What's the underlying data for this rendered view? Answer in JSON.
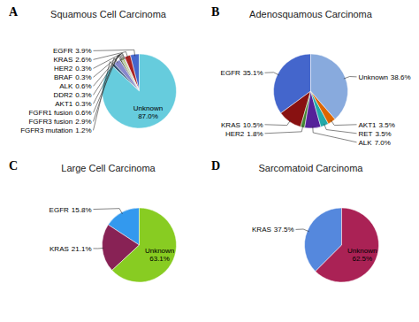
{
  "chart_data": [
    {
      "type": "pie",
      "title": "Squamous Cell Carcinoma",
      "annotations": [
        "A"
      ],
      "categories": [
        "EGFR",
        "KRAS",
        "HER2",
        "BRAF",
        "ALK",
        "DDR2",
        "AKT1",
        "FGFR1 fusion",
        "FGFR3 fusion",
        "FGFR3 mutation",
        "Unknown"
      ],
      "values": [
        3.9,
        2.6,
        0.3,
        0.3,
        0.6,
        0.3,
        0.3,
        0.6,
        2.9,
        1.2,
        87.0
      ],
      "value_labels": [
        "3.9%",
        "2.6%",
        "0.3%",
        "0.3%",
        "0.6%",
        "0.3%",
        "0.3%",
        "0.6%",
        "2.9%",
        "1.2%",
        "87.0%"
      ],
      "colors": [
        "#4466cc",
        "#aa2222",
        "#993388",
        "#888888",
        "#88aa22",
        "#446644",
        "#226622",
        "#334422",
        "#8888cc",
        "#335577",
        "#66ccdd"
      ],
      "data_labels": true
    },
    {
      "type": "pie",
      "title": "Adenosquamous Carcinoma",
      "annotations": [
        "B"
      ],
      "categories": [
        "EGFR",
        "KRAS",
        "HER2",
        "ALK",
        "RET",
        "AKT1",
        "Unknown"
      ],
      "values": [
        35.1,
        10.5,
        1.8,
        7.0,
        3.5,
        3.5,
        38.6
      ],
      "value_labels": [
        "35.1%",
        "10.5%",
        "1.8%",
        "7.0%",
        "3.5%",
        "3.5%",
        "38.6%"
      ],
      "colors": [
        "#4466cc",
        "#881111",
        "#448833",
        "#552299",
        "#22aaaa",
        "#dd6600",
        "#88aadd"
      ],
      "data_labels": true
    },
    {
      "type": "pie",
      "title": "Large Cell Carcinoma",
      "annotations": [
        "C"
      ],
      "categories": [
        "EGFR",
        "KRAS",
        "Unknown"
      ],
      "values": [
        15.8,
        21.1,
        63.1
      ],
      "value_labels": [
        "15.8%",
        "21.1%",
        "63.1%"
      ],
      "colors": [
        "#3399ee",
        "#882255",
        "#88cc22"
      ],
      "data_labels": true
    },
    {
      "type": "pie",
      "title": "Sarcomatoid Carcinoma",
      "annotations": [
        "D"
      ],
      "categories": [
        "KRAS",
        "Unknown"
      ],
      "values": [
        37.5,
        62.5
      ],
      "value_labels": [
        "37.5%",
        "62.5%"
      ],
      "colors": [
        "#5588dd",
        "#aa2255"
      ],
      "data_labels": true
    }
  ]
}
